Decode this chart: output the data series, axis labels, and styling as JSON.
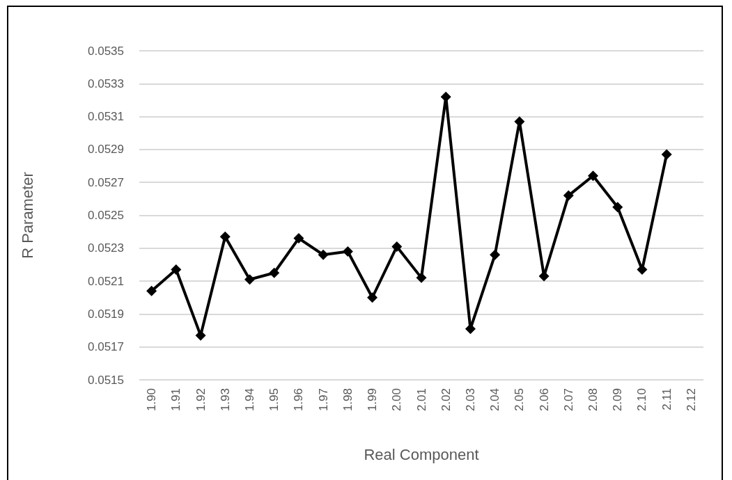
{
  "chart_data": {
    "type": "line",
    "xlabel": "Real Component",
    "ylabel": "R Parameter",
    "categories": [
      "1.90",
      "1.91",
      "1.92",
      "1.93",
      "1.94",
      "1.95",
      "1.96",
      "1.97",
      "1.98",
      "1.99",
      "2.00",
      "2.01",
      "2.02",
      "2.03",
      "2.04",
      "2.05",
      "2.06",
      "2.07",
      "2.08",
      "2.09",
      "2.10",
      "2.11",
      "2.12"
    ],
    "series": [
      {
        "color": "#000000",
        "values": [
          0.05204,
          0.05217,
          0.05177,
          0.05237,
          0.05211,
          0.05215,
          0.05236,
          0.05226,
          0.05228,
          0.052,
          0.05231,
          0.05212,
          0.05322,
          0.05181,
          0.05226,
          0.05307,
          0.05213,
          0.05262,
          0.05274,
          0.05255,
          0.05217,
          0.05287,
          null
        ]
      }
    ],
    "ylim": [
      0.0515,
      0.0535
    ],
    "yticks": [
      0.0515,
      0.0517,
      0.0519,
      0.0521,
      0.0523,
      0.0525,
      0.0527,
      0.0529,
      0.0531,
      0.0533,
      0.0535
    ],
    "grid": "y",
    "marker": "diamond",
    "line_style": "solid"
  }
}
